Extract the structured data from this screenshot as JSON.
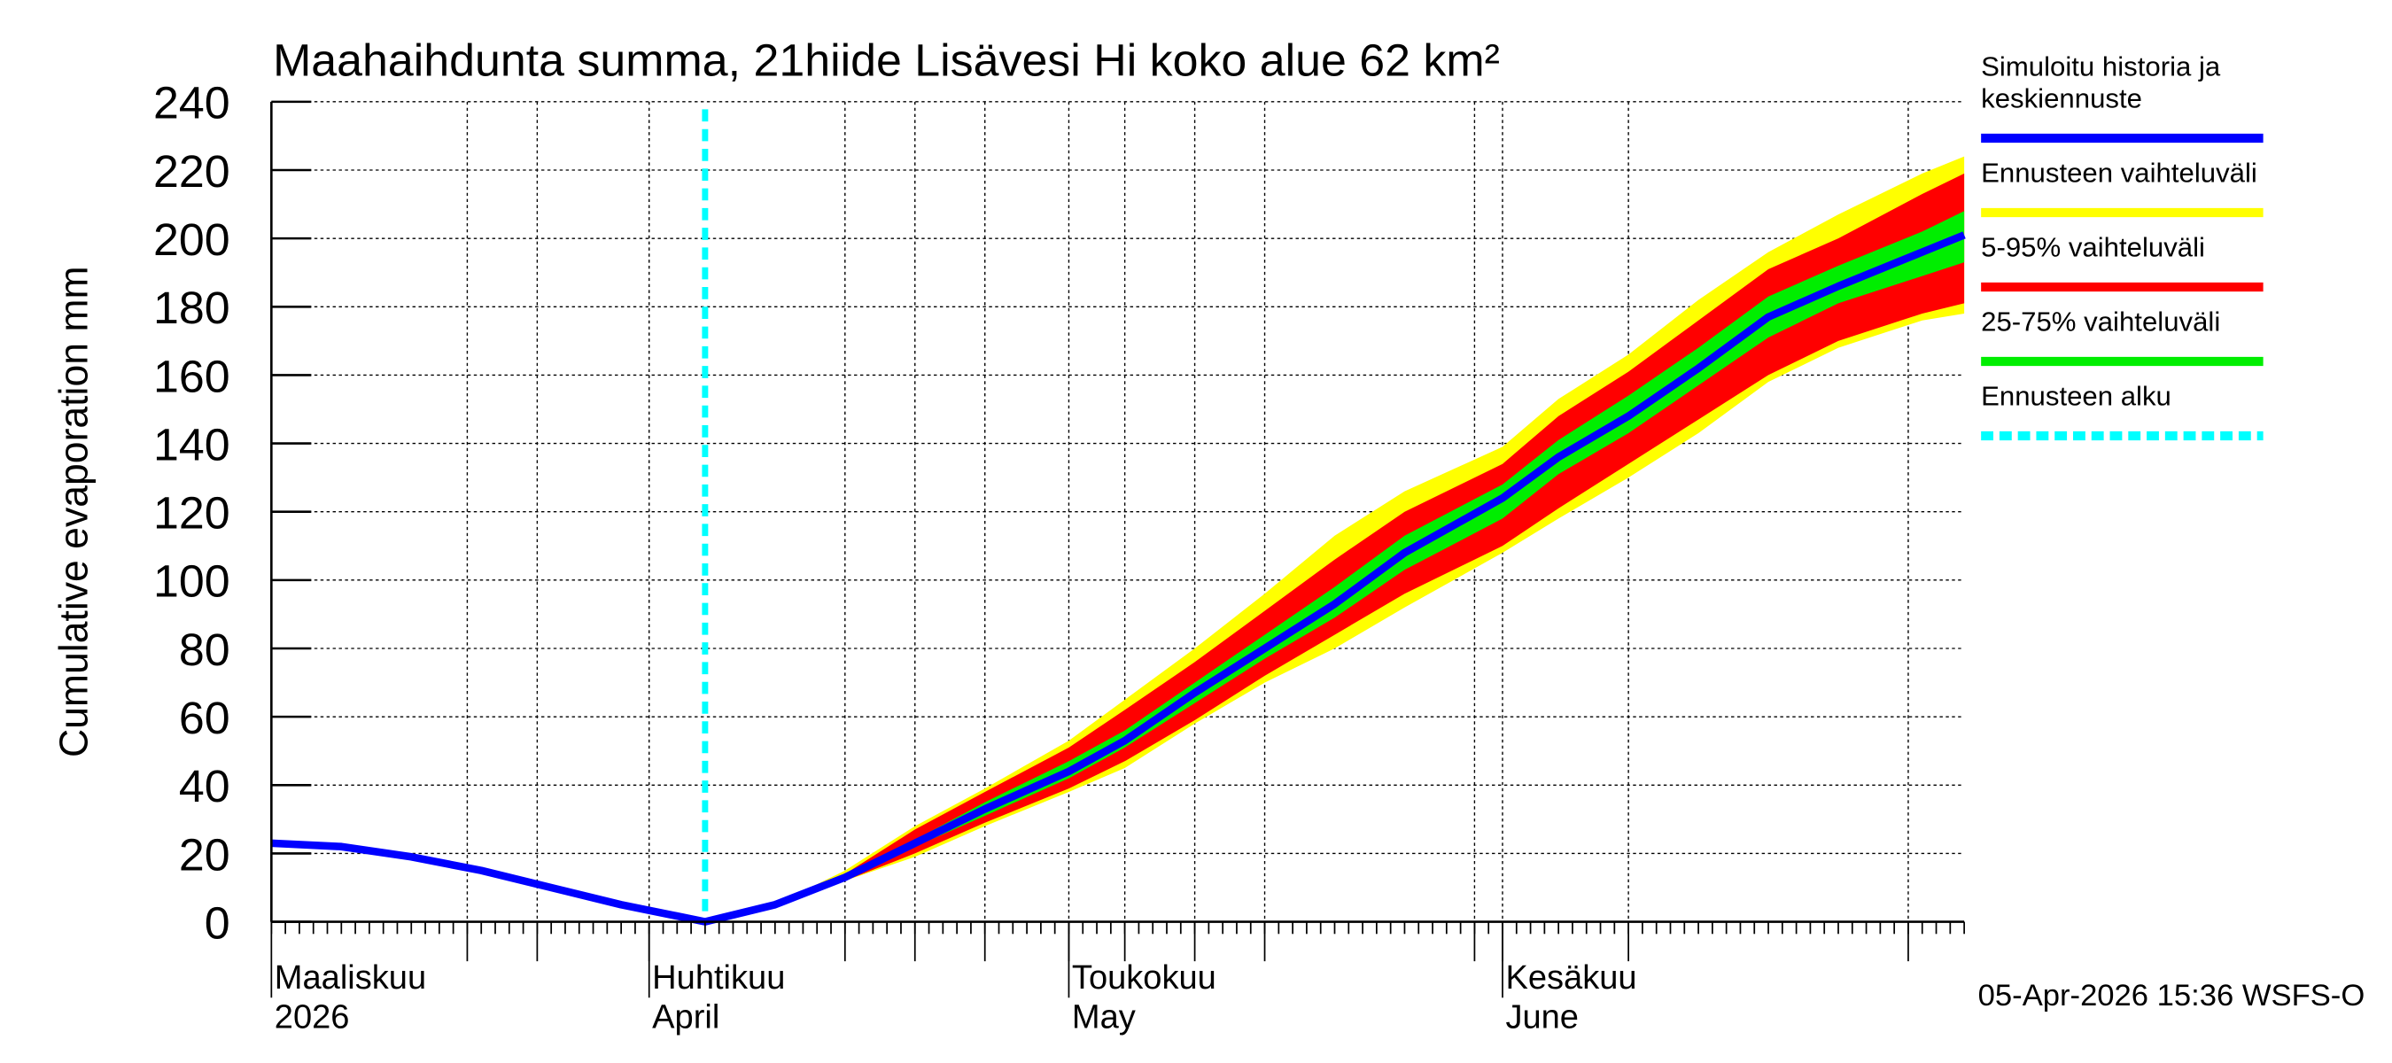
{
  "chart_data": {
    "type": "area",
    "title": "Maahaihdunta summa, 21hiide Lisävesi Hi koko alue 62 km²",
    "ylabel": "Cumulative evaporation   mm",
    "ylim": [
      0,
      240
    ],
    "yticks": [
      0,
      20,
      40,
      60,
      80,
      100,
      120,
      140,
      160,
      180,
      200,
      220,
      240
    ],
    "xlim": [
      "2026-03-05",
      "2026-07-04"
    ],
    "grid": true,
    "legend_position": "right",
    "month_labels": [
      {
        "date": "2026-03-01",
        "line1": "Maaliskuu",
        "line2": "2026"
      },
      {
        "date": "2026-04-01",
        "line1": "Huhtikuu",
        "line2": "April"
      },
      {
        "date": "2026-05-01",
        "line1": "Toukokuu",
        "line2": "May"
      },
      {
        "date": "2026-06-01",
        "line1": "Kesäkuu",
        "line2": "June"
      }
    ],
    "forecast_start": "2026-04-05",
    "history": {
      "dates": [
        "2026-03-05",
        "2026-03-10",
        "2026-03-15",
        "2026-03-20",
        "2026-03-25",
        "2026-03-30",
        "2026-04-05"
      ],
      "values": [
        23,
        22,
        19,
        15,
        10,
        5,
        0
      ]
    },
    "forecast": {
      "dates": [
        "2026-04-05",
        "2026-04-10",
        "2026-04-15",
        "2026-04-20",
        "2026-04-25",
        "2026-05-01",
        "2026-05-05",
        "2026-05-10",
        "2026-05-15",
        "2026-05-20",
        "2026-05-25",
        "2026-06-01",
        "2026-06-05",
        "2026-06-10",
        "2026-06-15",
        "2026-06-20",
        "2026-06-25",
        "2026-07-01",
        "2026-07-04"
      ],
      "median": [
        0,
        5,
        13,
        23,
        33,
        44,
        53,
        67,
        80,
        93,
        108,
        124,
        136,
        148,
        162,
        177,
        186,
        196,
        201
      ],
      "min": [
        0,
        5,
        12,
        19,
        28,
        38,
        45,
        58,
        70,
        80,
        92,
        108,
        118,
        130,
        143,
        158,
        168,
        176,
        178
      ],
      "p5": [
        0,
        5,
        12,
        20,
        29,
        39,
        47,
        59,
        72,
        84,
        96,
        110,
        121,
        134,
        147,
        160,
        170,
        178,
        181
      ],
      "p25": [
        0,
        5,
        13,
        22,
        31,
        42,
        51,
        64,
        77,
        89,
        103,
        118,
        131,
        143,
        157,
        171,
        181,
        189,
        193
      ],
      "p75": [
        0,
        5,
        14,
        24,
        35,
        47,
        56,
        70,
        84,
        98,
        113,
        128,
        141,
        154,
        168,
        183,
        192,
        202,
        208
      ],
      "p95": [
        0,
        5,
        14,
        27,
        38,
        51,
        62,
        76,
        91,
        106,
        120,
        134,
        148,
        161,
        176,
        191,
        200,
        213,
        219
      ],
      "max": [
        0,
        5,
        15,
        28,
        39,
        53,
        65,
        80,
        96,
        113,
        126,
        139,
        153,
        166,
        182,
        196,
        207,
        219,
        224
      ]
    },
    "legend": [
      {
        "label": "Simuloitu historia ja",
        "label2": "keskiennuste",
        "color": "#0000ff",
        "style": "solid"
      },
      {
        "label": "Ennusteen vaihteluväli",
        "color": "#ffff00",
        "style": "solid"
      },
      {
        "label": "5-95% vaihteluväli",
        "color": "#ff0000",
        "style": "solid"
      },
      {
        "label": "25-75% vaihteluväli",
        "color": "#00ee00",
        "style": "solid"
      },
      {
        "label": "Ennusteen alku",
        "color": "#00ffff",
        "style": "dashed"
      }
    ],
    "footer": "05-Apr-2026 15:36 WSFS-O"
  }
}
